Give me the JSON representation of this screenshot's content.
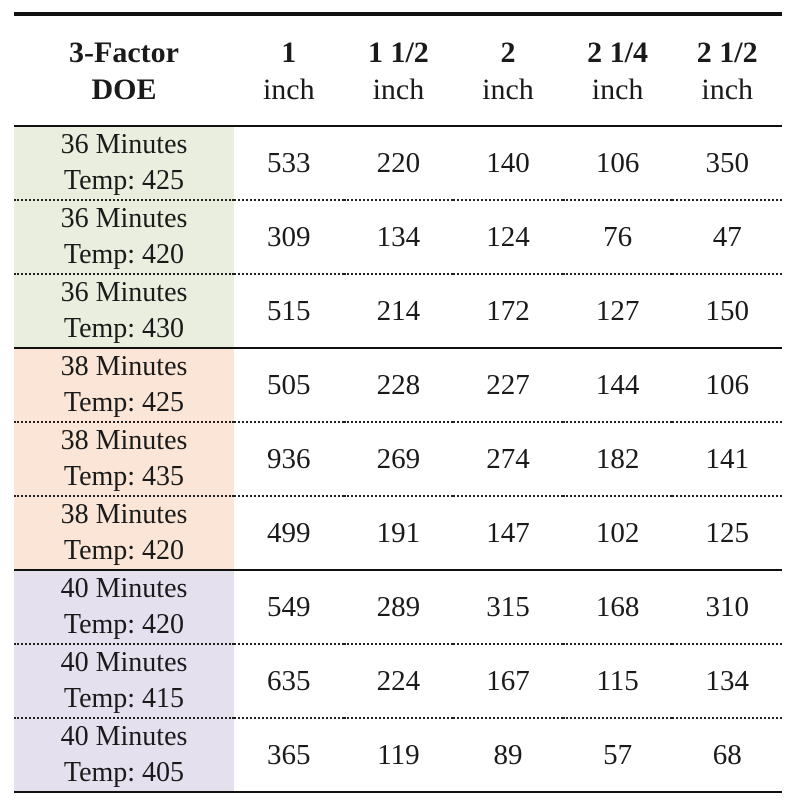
{
  "table": {
    "corner": {
      "line1": "3-Factor",
      "line2": "DOE"
    },
    "columns": [
      {
        "size": "1",
        "unit": "inch"
      },
      {
        "size": "1 1/2",
        "unit": "inch"
      },
      {
        "size": "2",
        "unit": "inch"
      },
      {
        "size": "2 1/4",
        "unit": "inch"
      },
      {
        "size": "2 1/2",
        "unit": "inch"
      }
    ],
    "groups": [
      {
        "color": "#e9eedf"
      },
      {
        "color": "#fbe5d6"
      },
      {
        "color": "#e4e0ee"
      }
    ],
    "rows": [
      {
        "time": "36 Minutes",
        "temp": "Temp: 425",
        "values": [
          "533",
          "220",
          "140",
          "106",
          "350"
        ]
      },
      {
        "time": "36 Minutes",
        "temp": "Temp: 420",
        "values": [
          "309",
          "134",
          "124",
          "76",
          "47"
        ]
      },
      {
        "time": "36 Minutes",
        "temp": "Temp: 430",
        "values": [
          "515",
          "214",
          "172",
          "127",
          "150"
        ]
      },
      {
        "time": "38 Minutes",
        "temp": "Temp: 425",
        "values": [
          "505",
          "228",
          "227",
          "144",
          "106"
        ]
      },
      {
        "time": "38 Minutes",
        "temp": "Temp: 435",
        "values": [
          "936",
          "269",
          "274",
          "182",
          "141"
        ]
      },
      {
        "time": "38 Minutes",
        "temp": "Temp: 420",
        "values": [
          "499",
          "191",
          "147",
          "102",
          "125"
        ]
      },
      {
        "time": "40 Minutes",
        "temp": "Temp: 420",
        "values": [
          "549",
          "289",
          "315",
          "168",
          "310"
        ]
      },
      {
        "time": "40 Minutes",
        "temp": "Temp: 415",
        "values": [
          "635",
          "224",
          "167",
          "115",
          "134"
        ]
      },
      {
        "time": "40 Minutes",
        "temp": "Temp: 405",
        "values": [
          "365",
          "119",
          "89",
          "57",
          "68"
        ]
      }
    ]
  }
}
